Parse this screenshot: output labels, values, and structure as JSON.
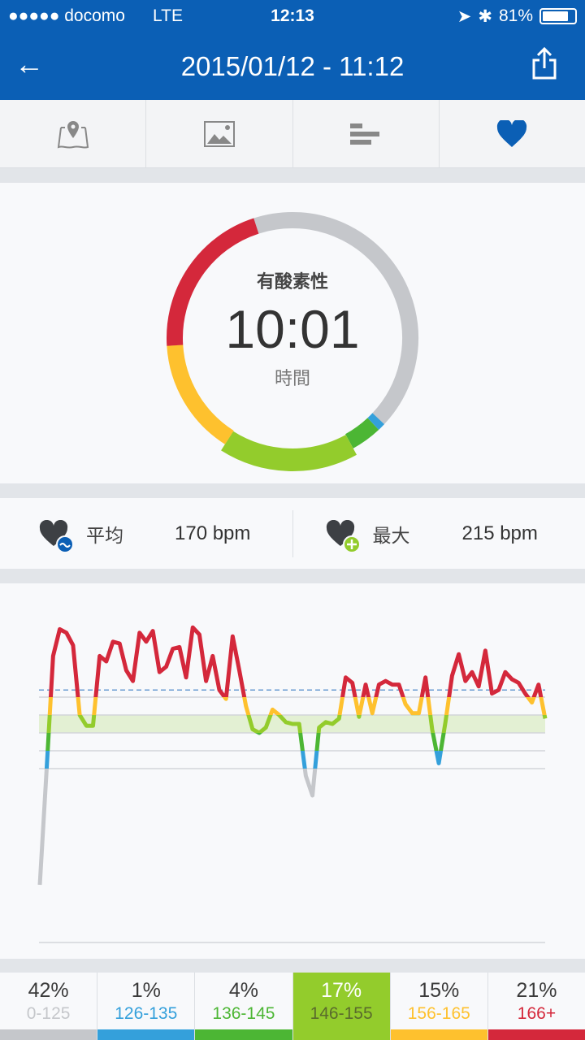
{
  "status_bar": {
    "carrier": "●●●●● docomo",
    "network": "LTE",
    "time": "12:13",
    "battery": "81%",
    "battery_level": 0.81
  },
  "header": {
    "title": "2015/01/12 - 11:12",
    "back_icon": "arrow-left-icon",
    "share_icon": "share-icon"
  },
  "tabs": [
    {
      "icon": "map-pin-icon",
      "active": false
    },
    {
      "icon": "photo-icon",
      "active": false
    },
    {
      "icon": "bars-icon",
      "active": false
    },
    {
      "icon": "heart-icon",
      "active": true
    }
  ],
  "ring": {
    "label": "有酸素性",
    "value": "10:01",
    "unit": "時間"
  },
  "stats": {
    "average": {
      "label": "平均",
      "value": "170 bpm"
    },
    "max": {
      "label": "最大",
      "value": "215 bpm"
    }
  },
  "colors": {
    "brand": "#0b5fb5",
    "gray": "#c5c7cb",
    "blue": "#34a0db",
    "green": "#4cb634",
    "lime": "#93cc2c",
    "yellow": "#fec12e",
    "red": "#d4283b"
  },
  "zones": [
    {
      "percent": "42%",
      "range": "0-125",
      "color": "#c5c7cb",
      "text_color": "#c5c7cb",
      "pct_value": 42,
      "min": 0,
      "max": 126
    },
    {
      "percent": "1%",
      "range": "126-135",
      "color": "#34a0db",
      "text_color": "#34a0db",
      "pct_value": 1,
      "min": 126,
      "max": 136
    },
    {
      "percent": "4%",
      "range": "136-145",
      "color": "#4cb634",
      "text_color": "#4cb634",
      "pct_value": 4,
      "min": 136,
      "max": 146
    },
    {
      "percent": "17%",
      "range": "146-155",
      "color": "#93cc2c",
      "text_color": "#5a6b2c",
      "pct_value": 17,
      "min": 146,
      "max": 156,
      "selected": true
    },
    {
      "percent": "15%",
      "range": "156-165",
      "color": "#fec12e",
      "text_color": "#fec12e",
      "pct_value": 15,
      "min": 156,
      "max": 166
    },
    {
      "percent": "21%",
      "range": "166+",
      "color": "#d4283b",
      "text_color": "#d4283b",
      "pct_value": 21,
      "min": 166,
      "max": 240
    }
  ],
  "chart_data": {
    "type": "line",
    "ylabel": "",
    "xlabel": "",
    "average_line": 170,
    "zone_lines": [
      166,
      156,
      146,
      136,
      126
    ],
    "highlighted_band": [
      146,
      156
    ],
    "ylim": [
      29,
      212
    ],
    "values": [
      61,
      124,
      189,
      204,
      202,
      195,
      156,
      150,
      150,
      189,
      186,
      197,
      196,
      181,
      175,
      202,
      197,
      203,
      180,
      183,
      193,
      194,
      177,
      205,
      201,
      175,
      189,
      170,
      165,
      200,
      181,
      161,
      148,
      146,
      149,
      159,
      156,
      152,
      151,
      151,
      122,
      111,
      149,
      152,
      151,
      154,
      177,
      174,
      155,
      173,
      157,
      173,
      175,
      173,
      173,
      162,
      157,
      157,
      177,
      148,
      129,
      152,
      178,
      190,
      175,
      180,
      172,
      192,
      168,
      170,
      180,
      176,
      174,
      168,
      163,
      173,
      154
    ]
  }
}
